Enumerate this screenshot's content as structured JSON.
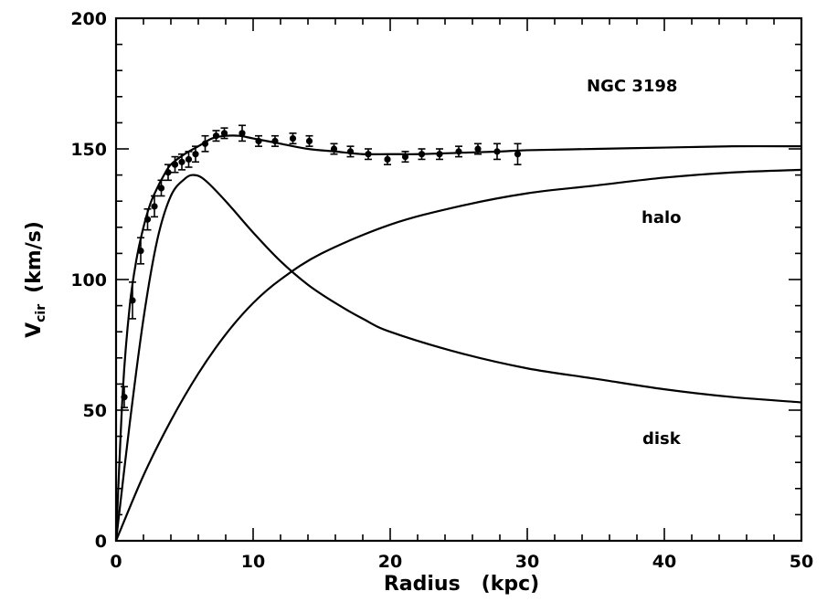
{
  "chart_data": {
    "type": "line",
    "title": "",
    "annotation": "NGC 3198",
    "xlabel": "Radius   (kpc)",
    "ylabel_main": "V",
    "ylabel_sub": "cir",
    "ylabel_unit": "(km/s)",
    "xlim": [
      0,
      50
    ],
    "ylim": [
      0,
      200
    ],
    "x_ticks": [
      0,
      10,
      20,
      30,
      40,
      50
    ],
    "y_ticks": [
      0,
      50,
      100,
      150,
      200
    ],
    "grid": false,
    "series": [
      {
        "name": "",
        "kind": "fit",
        "x": [
          0,
          0.5,
          1,
          1.5,
          2,
          2.5,
          3,
          3.5,
          4,
          5,
          6,
          7,
          8,
          9,
          10,
          12,
          14,
          16,
          18,
          20,
          22,
          25,
          28,
          30,
          35,
          40,
          45,
          50
        ],
        "y": [
          0,
          58,
          90,
          108,
          120,
          129,
          135,
          140,
          144,
          148,
          151,
          154,
          155,
          155,
          154,
          152,
          150,
          149,
          148,
          148,
          148,
          148.5,
          149,
          149.5,
          150,
          150.5,
          151,
          151
        ]
      },
      {
        "name": "disk",
        "kind": "disk",
        "x": [
          0,
          1,
          2,
          3,
          4,
          5,
          5.7,
          6.5,
          8,
          10,
          12,
          14,
          16,
          18,
          20,
          25,
          30,
          35,
          40,
          45,
          50
        ],
        "y": [
          0,
          45,
          85,
          115,
          132,
          138.5,
          140,
          138,
          130,
          118,
          107,
          98,
          91,
          85,
          80,
          72,
          66,
          62,
          58,
          55,
          53
        ]
      },
      {
        "name": "halo",
        "kind": "halo",
        "x": [
          0,
          2,
          4,
          6,
          8,
          10,
          12,
          15,
          20,
          25,
          30,
          35,
          40,
          45,
          50
        ],
        "y": [
          0,
          25,
          46,
          64,
          79,
          91,
          100,
          110,
          121,
          128,
          133,
          136,
          139,
          141,
          142
        ]
      }
    ],
    "observed": {
      "name": "",
      "x": [
        0.6,
        1.2,
        1.8,
        2.3,
        2.8,
        3.3,
        3.8,
        4.3,
        4.8,
        5.3,
        5.8,
        6.5,
        7.3,
        7.9,
        9.2,
        10.4,
        11.6,
        12.9,
        14.1,
        15.9,
        17.1,
        18.4,
        19.8,
        21.1,
        22.3,
        23.6,
        25.0,
        26.4,
        27.8,
        29.3
      ],
      "y": [
        55,
        92,
        111,
        123,
        128,
        135,
        141,
        144,
        145,
        146,
        148,
        152,
        155,
        156,
        156,
        153,
        153,
        154,
        153,
        150,
        149,
        148,
        146,
        147,
        148,
        148,
        149,
        150,
        149,
        148
      ],
      "err": [
        4,
        7,
        5,
        4,
        4,
        3,
        3,
        3,
        3,
        3,
        3,
        3,
        2,
        2,
        3,
        2,
        2,
        2,
        2,
        2,
        2,
        2,
        2,
        2,
        2,
        2,
        2,
        2,
        3,
        4
      ]
    }
  }
}
